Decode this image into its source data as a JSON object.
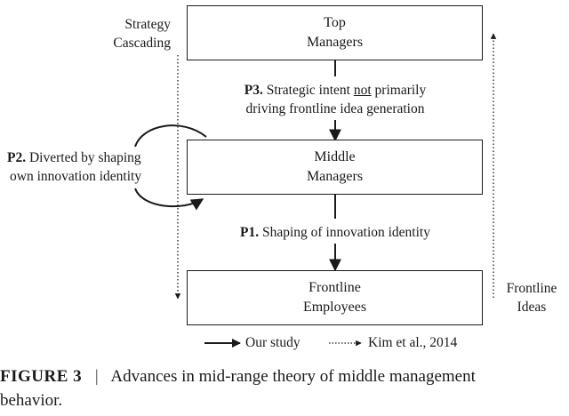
{
  "boxes": {
    "top": {
      "line1": "Top",
      "line2": "Managers"
    },
    "middle": {
      "line1": "Middle",
      "line2": "Managers"
    },
    "frontline": {
      "line1": "Frontline",
      "line2": "Employees"
    }
  },
  "left_label": {
    "line1": "Strategy",
    "line2": "Cascading"
  },
  "right_label": {
    "line1": "Frontline",
    "line2": "Ideas"
  },
  "p3": {
    "tag": "P3.",
    "text_a": " Strategic intent ",
    "text_not": "not",
    "text_b": " primarily",
    "line2": "driving frontline idea generation"
  },
  "p2": {
    "tag": "P2.",
    "text_a": " Diverted by shaping",
    "line2": "own innovation identity"
  },
  "p1": {
    "tag": "P1.",
    "text": " Shaping of innovation identity"
  },
  "legend": {
    "solid": "Our study",
    "dotted": "Kim et al., 2014"
  },
  "caption": {
    "label": "FIGURE 3",
    "sep": "|",
    "text": "Advances in mid-range theory of middle management",
    "line2": "behavior."
  }
}
